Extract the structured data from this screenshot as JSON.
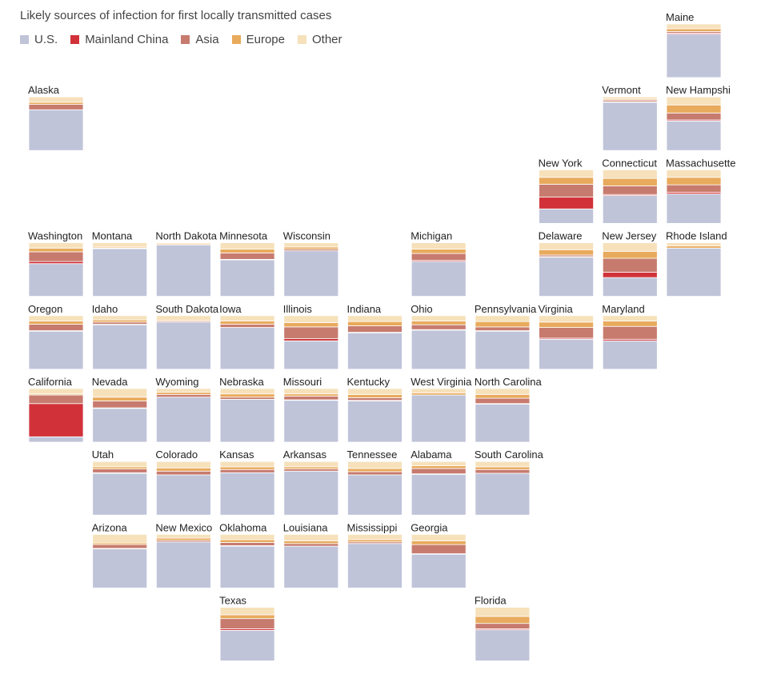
{
  "chart_data": {
    "type": "stacked-bar-tile-grid",
    "title": "Likely sources of infection for first locally transmitted cases",
    "legend": [
      {
        "key": "us",
        "label": "U.S.",
        "color": "#c0c4d9"
      },
      {
        "key": "china",
        "label": "Mainland China",
        "color": "#d13239"
      },
      {
        "key": "asia",
        "label": "Asia",
        "color": "#c77b6e"
      },
      {
        "key": "europe",
        "label": "Europe",
        "color": "#e8aa5c"
      },
      {
        "key": "other",
        "label": "Other",
        "color": "#f6e1bb"
      }
    ],
    "value_unit": "share of cases (%)",
    "states": [
      {
        "name": "Maine",
        "col": 10,
        "row": 0,
        "values": {
          "us": 81,
          "china": 2,
          "asia": 3,
          "europe": 5,
          "other": 9
        }
      },
      {
        "name": "Alaska",
        "col": 0,
        "row": 1,
        "values": {
          "us": 76,
          "china": 0,
          "asia": 10,
          "europe": 4,
          "other": 10
        }
      },
      {
        "name": "Vermont",
        "col": 9,
        "row": 1,
        "values": {
          "us": 90,
          "china": 1,
          "asia": 3,
          "europe": 2,
          "other": 4
        }
      },
      {
        "name": "New Hampshi",
        "col": 10,
        "row": 1,
        "values": {
          "us": 55,
          "china": 2,
          "asia": 13,
          "europe": 15,
          "other": 15
        }
      },
      {
        "name": "New York",
        "col": 8,
        "row": 2,
        "values": {
          "us": 27,
          "china": 22,
          "asia": 24,
          "europe": 13,
          "other": 14
        }
      },
      {
        "name": "Connecticut",
        "col": 9,
        "row": 2,
        "values": {
          "us": 52,
          "china": 2,
          "asia": 16,
          "europe": 14,
          "other": 16
        }
      },
      {
        "name": "Massachusette",
        "col": 10,
        "row": 2,
        "values": {
          "us": 55,
          "china": 3,
          "asia": 14,
          "europe": 14,
          "other": 14
        }
      },
      {
        "name": "Washington",
        "col": 0,
        "row": 3,
        "values": {
          "us": 61,
          "china": 4,
          "asia": 18,
          "europe": 7,
          "other": 10
        }
      },
      {
        "name": "Montana",
        "col": 1,
        "row": 3,
        "values": {
          "us": 89,
          "china": 0,
          "asia": 1,
          "europe": 2,
          "other": 8
        }
      },
      {
        "name": "North Dakota",
        "col": 2,
        "row": 3,
        "values": {
          "us": 96,
          "china": 0,
          "asia": 0,
          "europe": 2,
          "other": 2
        }
      },
      {
        "name": "Minnesota",
        "col": 3,
        "row": 3,
        "values": {
          "us": 68,
          "china": 1,
          "asia": 12,
          "europe": 7,
          "other": 12
        }
      },
      {
        "name": "Wisconsin",
        "col": 4,
        "row": 3,
        "values": {
          "us": 85,
          "china": 0,
          "asia": 3,
          "europe": 4,
          "other": 8
        }
      },
      {
        "name": "Michigan",
        "col": 6,
        "row": 3,
        "values": {
          "us": 65,
          "china": 2,
          "asia": 13,
          "europe": 8,
          "other": 12
        }
      },
      {
        "name": "Delaware",
        "col": 8,
        "row": 3,
        "values": {
          "us": 73,
          "china": 1,
          "asia": 3,
          "europe": 10,
          "other": 13
        }
      },
      {
        "name": "New Jersey",
        "col": 9,
        "row": 3,
        "values": {
          "us": 35,
          "china": 10,
          "asia": 26,
          "europe": 13,
          "other": 16
        }
      },
      {
        "name": "Rhode Island",
        "col": 10,
        "row": 3,
        "values": {
          "us": 90,
          "china": 0,
          "asia": 0,
          "europe": 4,
          "other": 6
        }
      },
      {
        "name": "Oregon",
        "col": 0,
        "row": 4,
        "values": {
          "us": 71,
          "china": 1,
          "asia": 12,
          "europe": 6,
          "other": 10
        }
      },
      {
        "name": "Idaho",
        "col": 1,
        "row": 4,
        "values": {
          "us": 83,
          "china": 1,
          "asia": 4,
          "europe": 4,
          "other": 8
        }
      },
      {
        "name": "South Dakota",
        "col": 2,
        "row": 4,
        "values": {
          "us": 88,
          "china": 0,
          "asia": 2,
          "europe": 2,
          "other": 8
        }
      },
      {
        "name": "Iowa",
        "col": 3,
        "row": 4,
        "values": {
          "us": 78,
          "china": 0,
          "asia": 6,
          "europe": 6,
          "other": 10
        }
      },
      {
        "name": "Illinois",
        "col": 4,
        "row": 4,
        "values": {
          "us": 53,
          "china": 4,
          "asia": 22,
          "europe": 8,
          "other": 13
        }
      },
      {
        "name": "Indiana",
        "col": 5,
        "row": 4,
        "values": {
          "us": 68,
          "china": 1,
          "asia": 12,
          "europe": 8,
          "other": 11
        }
      },
      {
        "name": "Ohio",
        "col": 6,
        "row": 4,
        "values": {
          "us": 73,
          "china": 1,
          "asia": 9,
          "europe": 7,
          "other": 10
        }
      },
      {
        "name": "Pennsylvania",
        "col": 7,
        "row": 4,
        "values": {
          "us": 71,
          "china": 1,
          "asia": 7,
          "europe": 10,
          "other": 11
        }
      },
      {
        "name": "Virginia",
        "col": 8,
        "row": 4,
        "values": {
          "us": 56,
          "china": 2,
          "asia": 20,
          "europe": 10,
          "other": 12
        }
      },
      {
        "name": "Maryland",
        "col": 9,
        "row": 4,
        "values": {
          "us": 53,
          "china": 3,
          "asia": 24,
          "europe": 10,
          "other": 10
        }
      },
      {
        "name": "California",
        "col": 0,
        "row": 5,
        "values": {
          "us": 10,
          "china": 62,
          "asia": 16,
          "europe": 2,
          "other": 10
        }
      },
      {
        "name": "Nevada",
        "col": 1,
        "row": 5,
        "values": {
          "us": 63,
          "china": 1,
          "asia": 13,
          "europe": 7,
          "other": 16
        }
      },
      {
        "name": "Wyoming",
        "col": 2,
        "row": 5,
        "values": {
          "us": 84,
          "china": 0,
          "asia": 5,
          "europe": 4,
          "other": 7
        }
      },
      {
        "name": "Nebraska",
        "col": 3,
        "row": 5,
        "values": {
          "us": 80,
          "china": 0,
          "asia": 4,
          "europe": 6,
          "other": 10
        }
      },
      {
        "name": "Missouri",
        "col": 4,
        "row": 5,
        "values": {
          "us": 78,
          "china": 1,
          "asia": 7,
          "europe": 4,
          "other": 10
        }
      },
      {
        "name": "Kentucky",
        "col": 5,
        "row": 5,
        "values": {
          "us": 77,
          "china": 1,
          "asia": 5,
          "europe": 6,
          "other": 11
        }
      },
      {
        "name": "West Virginia",
        "col": 6,
        "row": 5,
        "values": {
          "us": 88,
          "china": 0,
          "asia": 0,
          "europe": 4,
          "other": 8
        }
      },
      {
        "name": "North Carolina",
        "col": 7,
        "row": 5,
        "values": {
          "us": 71,
          "china": 1,
          "asia": 10,
          "europe": 7,
          "other": 11
        }
      },
      {
        "name": "Utah",
        "col": 1,
        "row": 6,
        "values": {
          "us": 78,
          "china": 1,
          "asia": 7,
          "europe": 4,
          "other": 10
        }
      },
      {
        "name": "Colorado",
        "col": 2,
        "row": 6,
        "values": {
          "us": 75,
          "china": 0,
          "asia": 7,
          "europe": 6,
          "other": 12
        }
      },
      {
        "name": "Kansas",
        "col": 3,
        "row": 6,
        "values": {
          "us": 79,
          "china": 0,
          "asia": 6,
          "europe": 5,
          "other": 10
        }
      },
      {
        "name": "Arkansas",
        "col": 4,
        "row": 6,
        "values": {
          "us": 82,
          "china": 0,
          "asia": 4,
          "europe": 4,
          "other": 10
        }
      },
      {
        "name": "Tennessee",
        "col": 5,
        "row": 6,
        "values": {
          "us": 75,
          "china": 0,
          "asia": 6,
          "europe": 6,
          "other": 13
        }
      },
      {
        "name": "Alabama",
        "col": 6,
        "row": 6,
        "values": {
          "us": 76,
          "china": 1,
          "asia": 10,
          "europe": 5,
          "other": 8
        }
      },
      {
        "name": "South Carolina",
        "col": 7,
        "row": 6,
        "values": {
          "us": 78,
          "china": 0,
          "asia": 7,
          "europe": 5,
          "other": 10
        }
      },
      {
        "name": "Arizona",
        "col": 1,
        "row": 7,
        "values": {
          "us": 73,
          "china": 1,
          "asia": 7,
          "europe": 3,
          "other": 16
        }
      },
      {
        "name": "New Mexico",
        "col": 2,
        "row": 7,
        "values": {
          "us": 86,
          "china": 0,
          "asia": 3,
          "europe": 4,
          "other": 7
        }
      },
      {
        "name": "Oklahoma",
        "col": 3,
        "row": 7,
        "values": {
          "us": 78,
          "china": 1,
          "asia": 6,
          "europe": 5,
          "other": 10
        }
      },
      {
        "name": "Louisiana",
        "col": 4,
        "row": 7,
        "values": {
          "us": 78,
          "china": 0,
          "asia": 5,
          "europe": 5,
          "other": 12
        }
      },
      {
        "name": "Mississippi",
        "col": 5,
        "row": 7,
        "values": {
          "us": 83,
          "china": 0,
          "asia": 3,
          "europe": 4,
          "other": 10
        }
      },
      {
        "name": "Georgia",
        "col": 6,
        "row": 7,
        "values": {
          "us": 63,
          "china": 1,
          "asia": 17,
          "europe": 7,
          "other": 12
        }
      },
      {
        "name": "Texas",
        "col": 3,
        "row": 8,
        "values": {
          "us": 57,
          "china": 3,
          "asia": 19,
          "europe": 7,
          "other": 14
        }
      },
      {
        "name": "Florida",
        "col": 7,
        "row": 8,
        "values": {
          "us": 58,
          "china": 2,
          "asia": 10,
          "europe": 13,
          "other": 17
        }
      }
    ]
  }
}
